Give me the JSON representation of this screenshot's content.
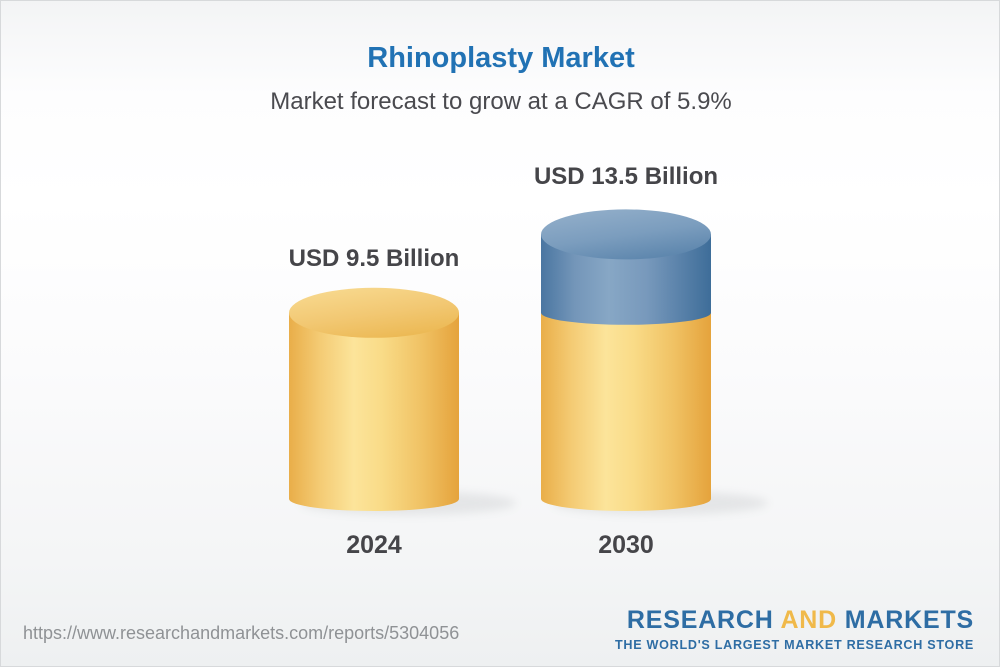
{
  "page": {
    "title": "Rhinoplasty Market",
    "subtitle": "Market forecast to grow at a CAGR of 5.9%"
  },
  "footer": {
    "source_url": "https://www.researchandmarkets.com/reports/5304056",
    "logo": {
      "word1": "RESEARCH",
      "word2": "AND",
      "word3": "MARKETS",
      "tagline": "THE WORLD'S LARGEST MARKET RESEARCH STORE"
    }
  },
  "colors": {
    "title_blue": "#2172b4",
    "text_dark": "#454549",
    "subtitle_gray": "#4a4a4f",
    "url_gray": "#8f9295",
    "logo_blue": "#2e6da4",
    "logo_gold": "#f0b94a",
    "bar_yellow": "#f2c76f",
    "bar_blue": "#5c87ae"
  },
  "chart_data": {
    "type": "bar",
    "variant": "3d-stacked-cylinder",
    "title": "Rhinoplasty Market",
    "subtitle": "Market forecast to grow at a CAGR of 5.9%",
    "cagr_percent": 5.9,
    "unit": "USD Billion",
    "categories": [
      "2024",
      "2030"
    ],
    "values": [
      9.5,
      13.5
    ],
    "value_labels": [
      "USD 9.5 Billion",
      "USD 13.5 Billion"
    ],
    "bars": [
      {
        "category": "2024",
        "label": "USD 9.5 Billion",
        "parts": [
          {
            "color": "yellow",
            "value": 9.5
          }
        ]
      },
      {
        "category": "2030",
        "label": "USD 13.5 Billion",
        "parts": [
          {
            "color": "yellow",
            "value": 9.5
          },
          {
            "color": "blue",
            "value": 4.0
          }
        ]
      }
    ],
    "legend": "none",
    "axes": "none",
    "style": {
      "gradients": {
        "yellow": {
          "body": [
            [
              "0%",
              "#e9ae49"
            ],
            [
              "18%",
              "#f4cb74"
            ],
            [
              "38%",
              "#fce49a"
            ],
            [
              "55%",
              "#f9db87"
            ],
            [
              "78%",
              "#f0c264"
            ],
            [
              "100%",
              "#e5a33c"
            ]
          ],
          "top": [
            [
              "0%",
              "#f8da90"
            ],
            [
              "55%",
              "#f2c873"
            ],
            [
              "100%",
              "#ecb954"
            ]
          ]
        },
        "blue": {
          "body": [
            [
              "0%",
              "#4a76a1"
            ],
            [
              "20%",
              "#7496b9"
            ],
            [
              "40%",
              "#87a7c5"
            ],
            [
              "62%",
              "#7899bc"
            ],
            [
              "100%",
              "#3e6d99"
            ]
          ],
          "top": [
            [
              "0%",
              "#93afca"
            ],
            [
              "55%",
              "#7b9dbe"
            ],
            [
              "100%",
              "#5d86ad"
            ]
          ]
        }
      },
      "shadow_color": "#70747a"
    }
  }
}
